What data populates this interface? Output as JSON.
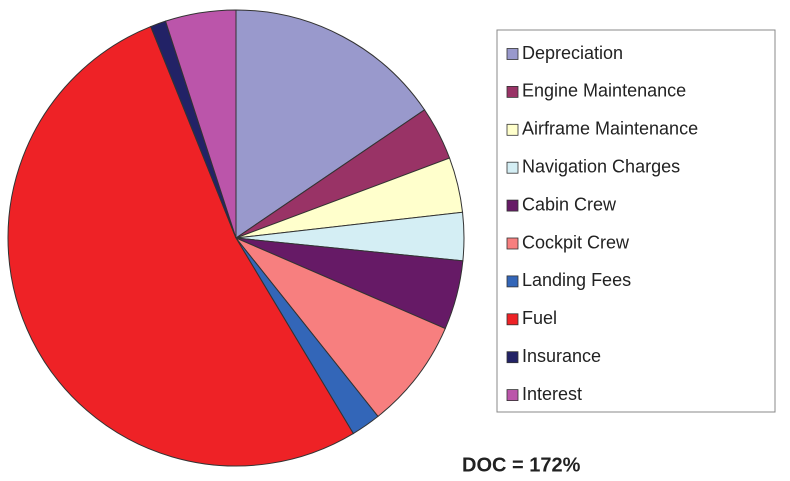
{
  "chart_data": {
    "type": "pie",
    "categories": [
      "Depreciation",
      "Engine Maintenance",
      "Airframe Maintenance",
      "Navigation Charges",
      "Cabin Crew",
      "Cockpit Crew",
      "Landing Fees",
      "Fuel",
      "Insurance",
      "Interest"
    ],
    "values": [
      15.5,
      3.8,
      3.9,
      3.4,
      4.9,
      7.8,
      2.1,
      52.5,
      1.1,
      5.0
    ],
    "colors": [
      "#9999cc",
      "#993366",
      "#ffffcc",
      "#d4eef4",
      "#661a66",
      "#f77f7f",
      "#3366b8",
      "#ee2226",
      "#222266",
      "#bb55aa"
    ],
    "annotation": "DOC = 172%",
    "legend": "right"
  }
}
